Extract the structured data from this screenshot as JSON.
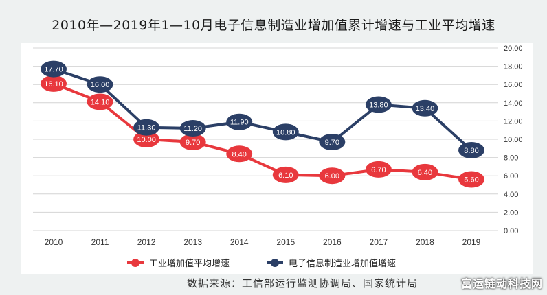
{
  "chart_data": {
    "type": "line",
    "title": "2010年—2019年1—10月电子信息制造业增加值累计增速与工业平均增速",
    "categories": [
      "2010",
      "2011",
      "2012",
      "2013",
      "2014",
      "2015",
      "2016",
      "2017",
      "2018",
      "2019"
    ],
    "ylim": [
      0,
      20
    ],
    "yticks": [
      "0.00",
      "2.00",
      "4.00",
      "6.00",
      "8.00",
      "10.00",
      "12.00",
      "14.00",
      "16.00",
      "18.00",
      "20.00"
    ],
    "y_axis_side": "right",
    "grid": true,
    "legend_position": "bottom",
    "series": [
      {
        "name": "工业增加值平均增速",
        "color": "#e8383d",
        "values": [
          16.1,
          14.1,
          10.0,
          9.7,
          8.4,
          6.1,
          6.0,
          6.7,
          6.4,
          5.6
        ],
        "labels": [
          "16.10",
          "14.10",
          "10.00",
          "9.70",
          "8.40",
          "6.10",
          "6.00",
          "6.70",
          "6.40",
          "5.60"
        ]
      },
      {
        "name": "电子信息制造业增加值增速",
        "color": "#2b3f66",
        "values": [
          17.7,
          16.0,
          11.3,
          11.2,
          11.9,
          10.8,
          9.7,
          13.8,
          13.4,
          8.8
        ],
        "labels": [
          "17.70",
          "16.00",
          "11.30",
          "11.20",
          "11.90",
          "10.80",
          "9.70",
          "13.80",
          "13.40",
          "8.80"
        ]
      }
    ]
  },
  "source": "数据来源：工信部运行监测协调局、国家统计局",
  "watermark": "富运链动科技网"
}
